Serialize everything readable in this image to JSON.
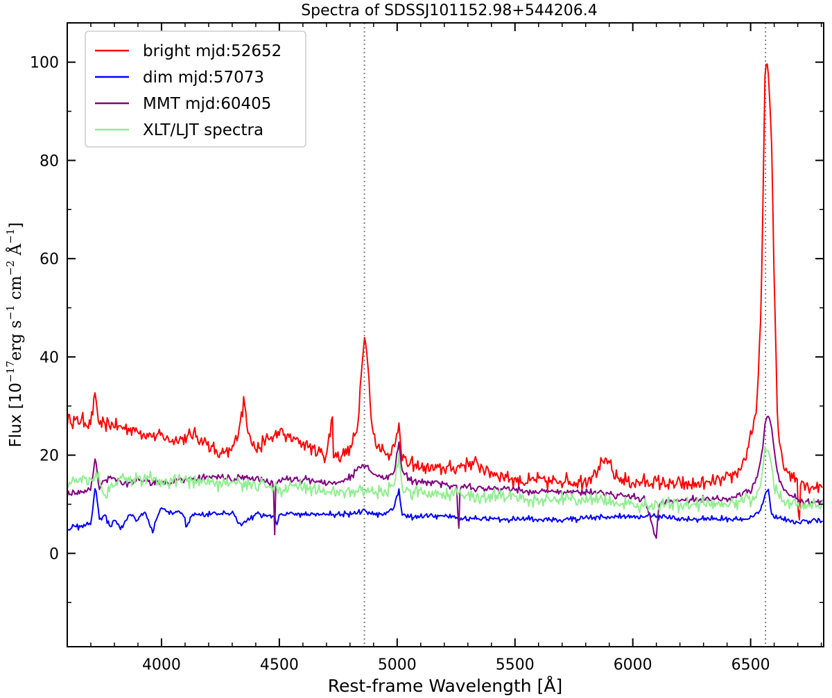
{
  "chart_data": {
    "type": "line",
    "title": "Spectra of SDSSJ101152.98+544206.4",
    "xlabel": "Rest-frame Wavelength [Å]",
    "ylabel": {
      "prefix": "Flux [10",
      "exp1": "−17",
      "mid1": "erg s",
      "exp2": "−1",
      "mid2": " cm",
      "exp3": "−2",
      "mid3": " Å",
      "exp4": "−1",
      "suffix": "]"
    },
    "xlim": [
      3600,
      6810
    ],
    "ylim": [
      -19,
      108
    ],
    "xticks": [
      4000,
      4500,
      5000,
      5500,
      6000,
      6500
    ],
    "xtick_labels": [
      "4000",
      "4500",
      "5000",
      "5500",
      "6000",
      "6500"
    ],
    "yticks": [
      0,
      20,
      40,
      60,
      80,
      100
    ],
    "ytick_labels": [
      "0",
      "20",
      "40",
      "60",
      "80",
      "100"
    ],
    "vlines": [
      4861,
      6563
    ],
    "grid": false,
    "legend_position": "top-left",
    "series": [
      {
        "name": "bright mjd:52652",
        "color": "#ff0000",
        "x": [
          3600,
          3650,
          3700,
          3720,
          3730,
          3750,
          3800,
          3850,
          3900,
          3950,
          4000,
          4050,
          4100,
          4150,
          4200,
          4250,
          4300,
          4330,
          4350,
          4370,
          4400,
          4450,
          4500,
          4550,
          4600,
          4650,
          4700,
          4725,
          4730,
          4735,
          4760,
          4800,
          4830,
          4845,
          4855,
          4865,
          4875,
          4890,
          4910,
          4940,
          4960,
          4990,
          5007,
          5020,
          5050,
          5100,
          5150,
          5200,
          5250,
          5300,
          5350,
          5400,
          5450,
          5500,
          5550,
          5600,
          5650,
          5700,
          5750,
          5800,
          5850,
          5890,
          5920,
          5950,
          6000,
          6050,
          6100,
          6150,
          6200,
          6250,
          6300,
          6350,
          6400,
          6450,
          6480,
          6510,
          6530,
          6545,
          6555,
          6563,
          6570,
          6580,
          6590,
          6600,
          6615,
          6640,
          6670,
          6700,
          6705,
          6710,
          6740,
          6770,
          6810
        ],
        "y": [
          27,
          27,
          26.5,
          33,
          27,
          26,
          26,
          25.5,
          25,
          24,
          24,
          23,
          23.5,
          24,
          22,
          20,
          21,
          26,
          31,
          25,
          21,
          23,
          24.5,
          23.5,
          22.5,
          21,
          20,
          28,
          20,
          20,
          20,
          21,
          25,
          35,
          42,
          44,
          39,
          27,
          22,
          21,
          20,
          21.5,
          27,
          20,
          18,
          17.5,
          17,
          17.5,
          17.5,
          18.5,
          18,
          16.5,
          16,
          15,
          14.5,
          15,
          14.5,
          15,
          14.5,
          15,
          17,
          19,
          16,
          15,
          14.5,
          14.5,
          14.5,
          14,
          14,
          14,
          14,
          14.5,
          15,
          17,
          20,
          25,
          33,
          50,
          80,
          102,
          100,
          94,
          82,
          55,
          25,
          18,
          16,
          15,
          3,
          15,
          14,
          13.5,
          14
        ]
      },
      {
        "name": "dim mjd:57073",
        "color": "#0000ff",
        "x": [
          3600,
          3650,
          3700,
          3720,
          3735,
          3760,
          3780,
          3800,
          3830,
          3860,
          3900,
          3930,
          3965,
          3975,
          4000,
          4020,
          4050,
          4080,
          4100,
          4105,
          4130,
          4200,
          4300,
          4340,
          4400,
          4480,
          4490,
          4500,
          4600,
          4700,
          4800,
          4860,
          4900,
          4950,
          4990,
          5007,
          5020,
          5050,
          5100,
          5200,
          5300,
          5400,
          5500,
          5600,
          5700,
          5800,
          5900,
          6000,
          6100,
          6200,
          6300,
          6400,
          6500,
          6540,
          6563,
          6575,
          6590,
          6620,
          6700,
          6750,
          6810
        ],
        "y": [
          5,
          5.5,
          6,
          14,
          7,
          8,
          5.5,
          7,
          5,
          8,
          7,
          8.5,
          4,
          7,
          9,
          8.5,
          8,
          8.5,
          7,
          5,
          8,
          8,
          8,
          6,
          8,
          7.5,
          6,
          8,
          8,
          8,
          8,
          8.5,
          8,
          8,
          10,
          13,
          8,
          7.5,
          7.5,
          7.5,
          7,
          7,
          7,
          7,
          7,
          7,
          7.5,
          7.5,
          7.5,
          7,
          7,
          7,
          7,
          8.5,
          12,
          13,
          8,
          7,
          6.5,
          6.5,
          6.5
        ]
      },
      {
        "name": "MMT mjd:60405",
        "color": "#800080",
        "x": [
          3600,
          3650,
          3700,
          3720,
          3735,
          3760,
          3800,
          3850,
          3900,
          3950,
          4000,
          4050,
          4100,
          4150,
          4200,
          4250,
          4300,
          4350,
          4400,
          4450,
          4475,
          4480,
          4485,
          4500,
          4550,
          4600,
          4650,
          4700,
          4750,
          4800,
          4845,
          4861,
          4880,
          4920,
          4960,
          4990,
          5007,
          5020,
          5050,
          5100,
          5150,
          5200,
          5255,
          5260,
          5265,
          5300,
          5400,
          5500,
          5600,
          5700,
          5800,
          5900,
          6000,
          6050,
          6095,
          6100,
          6110,
          6150,
          6200,
          6300,
          6400,
          6450,
          6500,
          6530,
          6550,
          6563,
          6575,
          6590,
          6610,
          6640,
          6700,
          6750,
          6810
        ],
        "y": [
          12,
          12.5,
          13,
          20,
          13,
          15,
          15.5,
          14,
          15,
          14.5,
          14.5,
          14.5,
          15,
          15,
          15.5,
          15.5,
          15,
          15.5,
          15,
          14.5,
          14,
          3,
          14,
          15,
          15,
          15,
          15,
          14,
          14.5,
          15.5,
          17.5,
          18,
          17,
          15.5,
          15.5,
          17,
          23,
          17,
          15,
          14.5,
          14.5,
          14,
          13.5,
          1,
          13.5,
          13.5,
          13,
          13,
          12.5,
          12.5,
          12.5,
          12,
          11.5,
          11,
          4,
          3,
          10,
          11,
          11,
          11,
          11,
          12,
          13,
          16,
          21,
          27,
          28,
          25,
          17,
          13,
          11,
          10.5,
          10.5
        ]
      },
      {
        "name": "XLT/LJT spectra",
        "color": "#90ee90",
        "x": [
          3600,
          3650,
          3700,
          3730,
          3760,
          3800,
          3850,
          3900,
          3950,
          4000,
          4050,
          4100,
          4150,
          4200,
          4250,
          4300,
          4350,
          4400,
          4450,
          4500,
          4550,
          4600,
          4650,
          4700,
          4750,
          4800,
          4850,
          4900,
          4950,
          4990,
          5007,
          5020,
          5050,
          5100,
          5200,
          5300,
          5400,
          5500,
          5600,
          5700,
          5800,
          5900,
          6000,
          6100,
          6200,
          6300,
          6400,
          6480,
          6520,
          6545,
          6563,
          6580,
          6600,
          6630,
          6700,
          6750,
          6810
        ],
        "y": [
          14,
          15,
          15.5,
          16,
          12,
          14,
          15.5,
          15,
          15.5,
          14,
          14.5,
          15,
          14,
          14.5,
          14,
          14.5,
          14,
          14,
          14,
          13,
          13.5,
          13.5,
          13,
          12.5,
          13,
          12.5,
          13,
          12.5,
          13,
          14,
          20,
          13,
          12.5,
          12.5,
          12,
          12,
          11.5,
          11.5,
          11,
          11,
          11,
          10.5,
          10,
          10,
          10,
          10,
          10,
          10.5,
          11.5,
          15,
          22,
          21,
          14,
          11,
          10,
          9.5,
          9.5
        ]
      }
    ]
  }
}
